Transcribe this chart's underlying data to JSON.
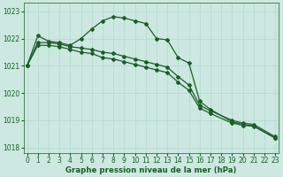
{
  "xlabel": "Graphe pression niveau de la mer (hPa)",
  "xlim": [
    -0.3,
    23.3
  ],
  "ylim": [
    1017.8,
    1023.3
  ],
  "yticks": [
    1018,
    1019,
    1020,
    1021,
    1022,
    1023
  ],
  "xticks": [
    0,
    1,
    2,
    3,
    4,
    5,
    6,
    7,
    8,
    9,
    10,
    11,
    12,
    13,
    14,
    15,
    16,
    17,
    18,
    19,
    20,
    21,
    22,
    23
  ],
  "bg_color": "#cce8e0",
  "grid_color": "#b0d8d0",
  "line_color": "#1a5e28",
  "series1_x": [
    0,
    1,
    2,
    3,
    4,
    5,
    6,
    7,
    8,
    9,
    10,
    11,
    12,
    13,
    14,
    15,
    16,
    17,
    19,
    20,
    21,
    23
  ],
  "series1_y": [
    1021.0,
    1022.1,
    1021.9,
    1021.85,
    1021.75,
    1022.0,
    1022.35,
    1022.65,
    1022.8,
    1022.75,
    1022.65,
    1022.55,
    1022.0,
    1021.95,
    1021.3,
    1021.1,
    1019.7,
    1019.4,
    1018.95,
    1018.85,
    1018.8,
    1018.35
  ],
  "series2_x": [
    0,
    1,
    2,
    3,
    4,
    5,
    6,
    7,
    8,
    9,
    10,
    11,
    12,
    13,
    14,
    15,
    16,
    17,
    19,
    20,
    21,
    23
  ],
  "series2_y": [
    1021.0,
    1021.85,
    1021.85,
    1021.8,
    1021.7,
    1021.65,
    1021.6,
    1021.5,
    1021.45,
    1021.35,
    1021.25,
    1021.15,
    1021.05,
    1020.95,
    1020.6,
    1020.3,
    1019.55,
    1019.35,
    1019.0,
    1018.9,
    1018.85,
    1018.4
  ],
  "series3_x": [
    0,
    1,
    2,
    3,
    4,
    5,
    6,
    7,
    8,
    9,
    10,
    11,
    12,
    13,
    14,
    15,
    16,
    17,
    19,
    20,
    21,
    23
  ],
  "series3_y": [
    1021.0,
    1021.75,
    1021.75,
    1021.7,
    1021.6,
    1021.5,
    1021.45,
    1021.3,
    1021.25,
    1021.15,
    1021.05,
    1020.95,
    1020.85,
    1020.75,
    1020.4,
    1020.1,
    1019.45,
    1019.25,
    1018.9,
    1018.82,
    1018.78,
    1018.35
  ],
  "marker": "D",
  "markersize": 2.0,
  "linewidth": 0.9,
  "tick_fontsize": 5.5,
  "xlabel_fontsize": 6.2
}
